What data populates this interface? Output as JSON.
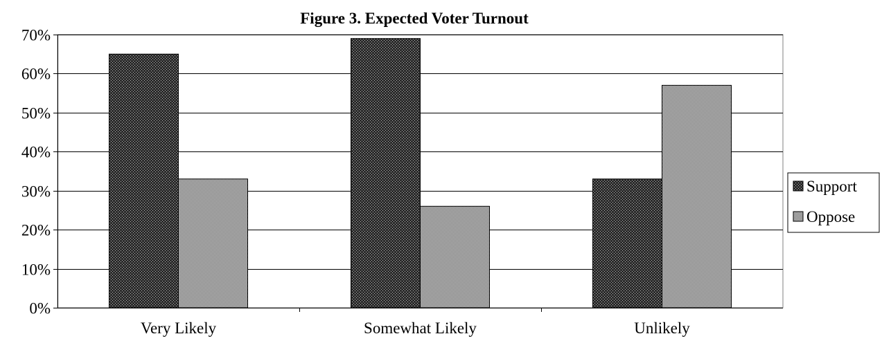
{
  "chart_data": {
    "type": "bar",
    "title": "Figure 3. Expected Voter Turnout",
    "xlabel": "",
    "ylabel": "",
    "categories": [
      "Very Likely",
      "Somewhat Likely",
      "Unlikely"
    ],
    "series": [
      {
        "name": "Support",
        "values": [
          65,
          69,
          33
        ],
        "color": "#333333",
        "pattern": "dots"
      },
      {
        "name": "Oppose",
        "values": [
          33,
          26,
          57
        ],
        "color": "#c8c8c8",
        "pattern": "crosshatch"
      }
    ],
    "ylim": [
      0,
      70
    ],
    "y_ticks": [
      0,
      10,
      20,
      30,
      40,
      50,
      60,
      70
    ],
    "y_tick_labels": [
      "0%",
      "10%",
      "20%",
      "30%",
      "40%",
      "50%",
      "60%",
      "70%"
    ],
    "grid": true,
    "legend_position": "right"
  }
}
